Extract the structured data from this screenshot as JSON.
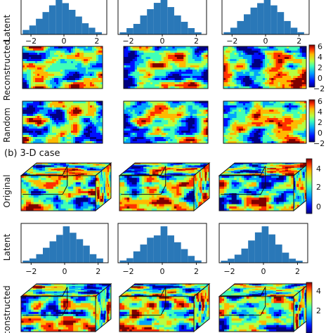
{
  "panel_b_title": "(b) 3-D case",
  "row_labels": {
    "latent_top": "Latent",
    "reconstructed_2d": "Reconstructed",
    "random_2d": "Random",
    "original_3d": "Original",
    "latent_3d": "Latent",
    "reconstructed_3d": "constructed"
  },
  "colorbar_ticks_2d": [
    "6",
    "4",
    "2",
    "0",
    "−2"
  ],
  "colorbar_ticks_3d": [
    "4",
    "2",
    "0"
  ],
  "colorbar_ticks_3d_bottom": [
    "4",
    "2"
  ],
  "histogram_ticks_top": [
    "−2",
    "0",
    "2"
  ],
  "histogram_ticks_3d": [
    "−2",
    "0",
    "2"
  ],
  "colors": {
    "bar": "#2a78b8",
    "axis": "#111111",
    "jet": [
      "#00007f",
      "#0010ff",
      "#00a4ff",
      "#40ffb7",
      "#b7ff40",
      "#ffb900",
      "#ff3000",
      "#7f0000"
    ]
  },
  "chart_data": [
    {
      "type": "bar",
      "panel": "latent-2d-col1",
      "x": [
        -2.3,
        -1.9,
        -1.5,
        -1.1,
        -0.7,
        -0.3,
        0.1,
        0.5,
        0.9,
        1.3,
        1.7,
        2.1
      ],
      "values": [
        2,
        4,
        7,
        10,
        13,
        16,
        14,
        11,
        8,
        5,
        3,
        1
      ],
      "xlim": [
        -2.6,
        2.6
      ]
    },
    {
      "type": "bar",
      "panel": "latent-2d-col2",
      "x": [
        -2.3,
        -1.9,
        -1.5,
        -1.1,
        -0.7,
        -0.3,
        0.1,
        0.5,
        0.9,
        1.3,
        1.7,
        2.1
      ],
      "values": [
        1,
        3,
        5,
        9,
        12,
        15,
        17,
        13,
        9,
        6,
        3,
        1
      ],
      "xlim": [
        -2.6,
        2.6
      ]
    },
    {
      "type": "bar",
      "panel": "latent-2d-col3",
      "x": [
        -2.3,
        -1.9,
        -1.5,
        -1.1,
        -0.7,
        -0.3,
        0.1,
        0.5,
        0.9,
        1.3,
        1.7,
        2.1
      ],
      "values": [
        1,
        3,
        6,
        9,
        12,
        14,
        16,
        13,
        10,
        6,
        3,
        1
      ],
      "xlim": [
        -2.6,
        2.6
      ]
    },
    {
      "type": "bar",
      "panel": "latent-3d-col1",
      "x": [
        -2.3,
        -1.9,
        -1.5,
        -1.1,
        -0.7,
        -0.3,
        0.1,
        0.5,
        0.9,
        1.3,
        1.7,
        2.1
      ],
      "values": [
        1,
        2,
        4,
        7,
        10,
        13,
        17,
        14,
        11,
        8,
        4,
        2
      ],
      "xlim": [
        -2.6,
        2.6
      ]
    },
    {
      "type": "bar",
      "panel": "latent-3d-col2",
      "x": [
        -2.3,
        -1.9,
        -1.5,
        -1.1,
        -0.7,
        -0.3,
        0.1,
        0.5,
        0.9,
        1.3,
        1.7,
        2.1
      ],
      "values": [
        1,
        2,
        5,
        8,
        11,
        12,
        16,
        12,
        9,
        6,
        3,
        1
      ],
      "xlim": [
        -2.6,
        2.6
      ]
    },
    {
      "type": "bar",
      "panel": "latent-3d-col3",
      "x": [
        -2.3,
        -1.9,
        -1.5,
        -1.1,
        -0.7,
        -0.3,
        0.1,
        0.5,
        0.9,
        1.3,
        1.7,
        2.1
      ],
      "values": [
        1,
        2,
        4,
        7,
        11,
        15,
        18,
        14,
        9,
        5,
        2,
        1
      ],
      "xlim": [
        -2.6,
        2.6
      ]
    }
  ]
}
